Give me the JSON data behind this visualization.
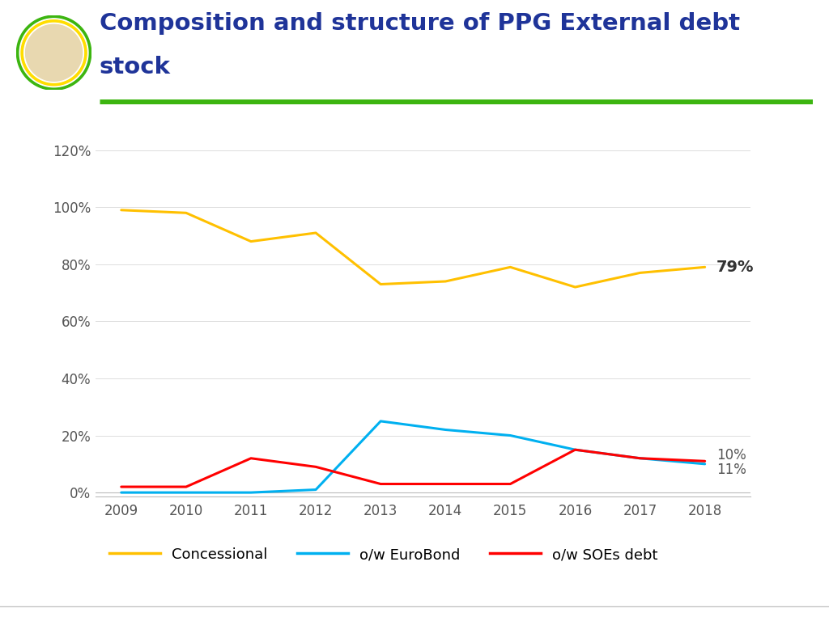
{
  "years": [
    2009,
    2010,
    2011,
    2012,
    2013,
    2014,
    2015,
    2016,
    2017,
    2018
  ],
  "concessional": [
    0.99,
    0.98,
    0.88,
    0.91,
    0.73,
    0.74,
    0.79,
    0.72,
    0.77,
    0.79
  ],
  "eurobond": [
    0.0,
    0.0,
    0.0,
    0.01,
    0.25,
    0.22,
    0.2,
    0.15,
    0.12,
    0.1
  ],
  "soes_debt": [
    0.02,
    0.02,
    0.12,
    0.09,
    0.03,
    0.03,
    0.03,
    0.15,
    0.12,
    0.11
  ],
  "concessional_color": "#FFC000",
  "eurobond_color": "#00B0F0",
  "soes_color": "#FF0000",
  "title_line1": "Composition and structure of PPG External debt",
  "title_line2": "stock",
  "title_color": "#1F3499",
  "green_line_color": "#3CB510",
  "bg_color": "#FFFFFF",
  "end_label_concessional": "79%",
  "end_label_eurobond": "10%",
  "end_label_soes": "11%",
  "legend_labels": [
    "Concessional",
    "o/w EuroBond",
    "o/w SOEs debt"
  ],
  "yticks": [
    0.0,
    0.2,
    0.4,
    0.6,
    0.8,
    1.0,
    1.2
  ],
  "ytick_labels": [
    "0%",
    "20%",
    "40%",
    "60%",
    "80%",
    "100%",
    "120%"
  ]
}
